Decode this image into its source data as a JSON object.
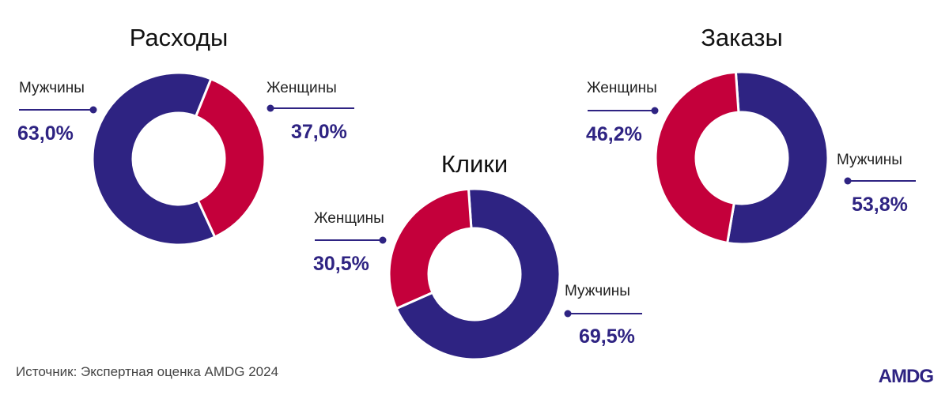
{
  "colors": {
    "men": "#2e2382",
    "women": "#c4003b",
    "line": "#2e2382",
    "logo": "#2e2382"
  },
  "source": "Источник: Экспертная оценка AMDG 2024",
  "logo": "AMDG",
  "chart_data": [
    {
      "type": "pie",
      "title": "Расходы",
      "slices": [
        {
          "label": "Мужчины",
          "value": 63.0,
          "value_text": "63,0%",
          "color": "#2e2382"
        },
        {
          "label": "Женщины",
          "value": 37.0,
          "value_text": "37,0%",
          "color": "#c4003b"
        }
      ]
    },
    {
      "type": "pie",
      "title": "Клики",
      "slices": [
        {
          "label": "Мужчины",
          "value": 69.5,
          "value_text": "69,5%",
          "color": "#2e2382"
        },
        {
          "label": "Женщины",
          "value": 30.5,
          "value_text": "30,5%",
          "color": "#c4003b"
        }
      ]
    },
    {
      "type": "pie",
      "title": "Заказы",
      "slices": [
        {
          "label": "Мужчины",
          "value": 53.8,
          "value_text": "53,8%",
          "color": "#2e2382"
        },
        {
          "label": "Женщины",
          "value": 46.2,
          "value_text": "46,2%",
          "color": "#c4003b"
        }
      ]
    }
  ]
}
